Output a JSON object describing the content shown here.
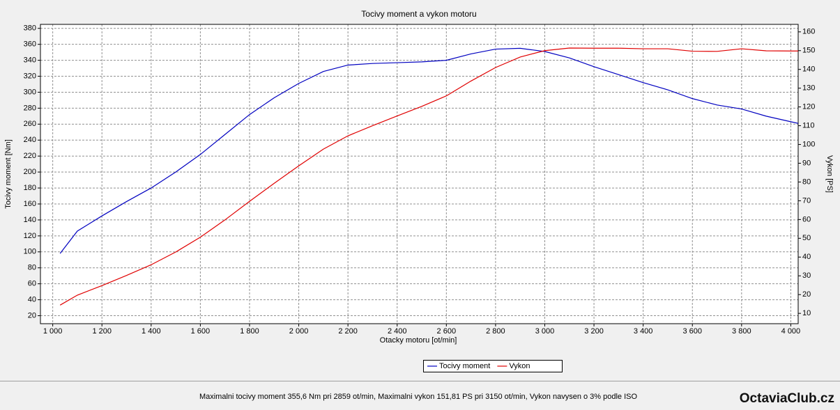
{
  "chart_data": {
    "type": "line",
    "title": "Tocivy moment a vykon motoru",
    "xlabel": "Otacky motoru [ot/min]",
    "ylabel": "Tocivy moment [Nm]",
    "y2label": "Vykon [PS]",
    "x": [
      1030,
      1100,
      1200,
      1300,
      1400,
      1500,
      1600,
      1700,
      1800,
      1900,
      2000,
      2100,
      2200,
      2300,
      2400,
      2500,
      2600,
      2700,
      2800,
      2900,
      3000,
      3100,
      3200,
      3300,
      3400,
      3500,
      3600,
      3700,
      3800,
      3900,
      4000,
      4030
    ],
    "series": [
      {
        "name": "Tocivy moment",
        "color": "#0000c0",
        "values": [
          98,
          126,
          145,
          163,
          180,
          200,
          222,
          247,
          272,
          293,
          311,
          326,
          334,
          336,
          337,
          338,
          340,
          348,
          354,
          355,
          351,
          343,
          332,
          322,
          312,
          303,
          292,
          284,
          279,
          270,
          263,
          261
        ]
      },
      {
        "name": "Vykon",
        "color": "#e00000",
        "axis": "y2",
        "values": [
          14.4,
          19.7,
          24.8,
          30.2,
          35.9,
          42.7,
          50.6,
          59.8,
          69.7,
          79.3,
          88.6,
          97.5,
          104.6,
          110,
          115.2,
          120.3,
          125.9,
          133.8,
          141,
          146.6,
          150,
          151.4,
          151.3,
          151.3,
          151,
          151,
          149.7,
          149.6,
          151,
          149.9,
          149.8,
          149.8
        ]
      }
    ],
    "xlim": [
      950,
      4030
    ],
    "xticks": [
      {
        "value": 1000,
        "label": "1 000"
      },
      {
        "value": 1200,
        "label": "1 200"
      },
      {
        "value": 1400,
        "label": "1 400"
      },
      {
        "value": 1600,
        "label": "1 600"
      },
      {
        "value": 1800,
        "label": "1 800"
      },
      {
        "value": 2000,
        "label": "2 000"
      },
      {
        "value": 2200,
        "label": "2 200"
      },
      {
        "value": 2400,
        "label": "2 400"
      },
      {
        "value": 2600,
        "label": "2 600"
      },
      {
        "value": 2800,
        "label": "2 800"
      },
      {
        "value": 3000,
        "label": "3 000"
      },
      {
        "value": 3200,
        "label": "3 200"
      },
      {
        "value": 3400,
        "label": "3 400"
      },
      {
        "value": 3600,
        "label": "3 600"
      },
      {
        "value": 3800,
        "label": "3 800"
      },
      {
        "value": 4000,
        "label": "4 000"
      }
    ],
    "ylim": [
      10,
      385
    ],
    "yticks": [
      20,
      40,
      60,
      80,
      100,
      120,
      140,
      160,
      180,
      200,
      220,
      240,
      260,
      280,
      300,
      320,
      340,
      360,
      380
    ],
    "y2lim": [
      4.5,
      164
    ],
    "y2ticks": [
      10,
      20,
      30,
      40,
      50,
      60,
      70,
      80,
      90,
      100,
      110,
      120,
      130,
      140,
      150,
      160
    ],
    "grid": true,
    "legend": "bottom"
  },
  "footer_note": "Maximalni tocivy moment 355,6 Nm pri 2859 ot/min,  Maximalni vykon 151,81 PS pri 3150 ot/min,  Vykon navysen o 3% podle ISO",
  "brand": "OctaviaClub.cz"
}
